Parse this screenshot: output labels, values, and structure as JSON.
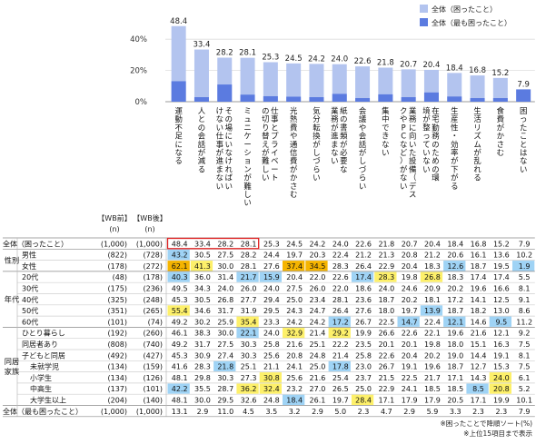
{
  "chart_data": {
    "type": "bar",
    "categories": [
      "運動不足になる",
      "人との会話が減る",
      "その場にいなければいけない仕事が進まない",
      "ミュニケーションが難しい",
      "仕事とプライベートの切り替えが難しい",
      "光熱費や通信費がかさむ",
      "気分転換がしづらい",
      "紙の書類が必要な業務が進まない",
      "会議や会話がしづらい",
      "集中できない",
      "業務に向いた設備（デスクやPCなど）がない",
      "在宅勤務のための環境が整っていない",
      "生産性・効率が下がる",
      "生活リズムが乱れる",
      "食費がかさむ",
      "困ったことはない"
    ],
    "series": [
      {
        "name": "全体（困ったこと）",
        "color": "#b3c4ef",
        "values": [
          48.4,
          33.4,
          28.2,
          28.1,
          25.3,
          24.5,
          24.2,
          24.0,
          22.6,
          21.8,
          20.7,
          20.4,
          18.4,
          16.8,
          15.2,
          null
        ]
      },
      {
        "name": "全体（最も困ったこと）",
        "color": "#5b7be0",
        "values": [
          13.1,
          2.9,
          11.0,
          4.5,
          3.5,
          3.2,
          2.9,
          5.0,
          2.3,
          4.7,
          2.9,
          5.9,
          3.3,
          2.3,
          2.3,
          7.9
        ]
      }
    ],
    "bar_labels": [
      "48.4",
      "33.4",
      "28.2",
      "28.1",
      "25.3",
      "24.5",
      "24.2",
      "24.0",
      "22.6",
      "21.8",
      "20.7",
      "20.4",
      "18.4",
      "16.8",
      "15.2",
      "7.9"
    ],
    "yticks": [
      "0%",
      "20%",
      "40%"
    ],
    "ylim": [
      0,
      50
    ],
    "legend_position": "top-right",
    "table": {
      "header_before": "【WB前】",
      "header_after": "【WB後】",
      "header_n": "(n)",
      "groups": [
        {
          "label": "",
          "rows": [
            0
          ]
        },
        {
          "label": "性別",
          "rows": [
            1,
            2
          ]
        },
        {
          "label": "年代",
          "rows": [
            3,
            4,
            5,
            6,
            7
          ]
        },
        {
          "label": "同居\n家族",
          "rows": [
            8,
            9,
            10,
            11,
            12,
            13,
            14
          ]
        },
        {
          "label": "",
          "rows": [
            15
          ]
        }
      ],
      "rows": [
        {
          "label": "全体（困ったこと）",
          "before": "(1,000)",
          "after": "(1,000)",
          "values": [
            "48.4",
            "33.4",
            "28.2",
            "28.1",
            "25.3",
            "24.5",
            "24.2",
            "24.0",
            "22.6",
            "21.8",
            "20.7",
            "20.4",
            "18.4",
            "16.8",
            "15.2",
            "7.9"
          ]
        },
        {
          "label": "男性",
          "before": "(822)",
          "after": "(728)",
          "values": [
            "43.2",
            "30.5",
            "27.5",
            "28.2",
            "24.4",
            "19.7",
            "20.3",
            "22.4",
            "21.2",
            "21.3",
            "20.8",
            "21.2",
            "20.6",
            "16.1",
            "13.6",
            "10.2"
          ]
        },
        {
          "label": "女性",
          "before": "(178)",
          "after": "(272)",
          "values": [
            "62.1",
            "41.3",
            "30.0",
            "28.1",
            "27.6",
            "37.4",
            "34.5",
            "28.3",
            "26.4",
            "22.9",
            "20.4",
            "18.3",
            "12.6",
            "18.7",
            "19.5",
            "1.9"
          ]
        },
        {
          "label": "20代",
          "before": "(48)",
          "after": "(178)",
          "values": [
            "40.3",
            "36.0",
            "31.4",
            "21.7",
            "15.9",
            "20.4",
            "22.0",
            "22.6",
            "17.4",
            "28.3",
            "19.8",
            "26.8",
            "18.3",
            "17.4",
            "17.4",
            "5.5"
          ]
        },
        {
          "label": "30代",
          "before": "(175)",
          "after": "(236)",
          "values": [
            "49.5",
            "34.3",
            "24.0",
            "26.0",
            "24.0",
            "27.5",
            "26.0",
            "22.0",
            "18.6",
            "24.0",
            "24.6",
            "20.9",
            "20.2",
            "19.6",
            "16.6",
            "8.1"
          ]
        },
        {
          "label": "40代",
          "before": "(325)",
          "after": "(248)",
          "values": [
            "45.3",
            "30.5",
            "26.8",
            "27.7",
            "29.4",
            "25.0",
            "23.4",
            "28.1",
            "23.6",
            "18.7",
            "20.2",
            "18.1",
            "17.2",
            "14.1",
            "12.5",
            "9.1"
          ]
        },
        {
          "label": "50代",
          "before": "(351)",
          "after": "(265)",
          "values": [
            "55.4",
            "34.6",
            "31.7",
            "31.9",
            "29.5",
            "24.3",
            "24.7",
            "26.4",
            "27.6",
            "18.0",
            "19.7",
            "13.9",
            "18.7",
            "18.2",
            "13.0",
            "8.6"
          ]
        },
        {
          "label": "60代",
          "before": "(101)",
          "after": "(74)",
          "values": [
            "49.2",
            "30.2",
            "25.9",
            "35.4",
            "23.3",
            "24.2",
            "24.2",
            "17.2",
            "26.7",
            "22.5",
            "14.7",
            "22.4",
            "12.1",
            "14.6",
            "9.5",
            "11.2"
          ]
        },
        {
          "label": "ひとり暮らし",
          "before": "(192)",
          "after": "(260)",
          "values": [
            "46.1",
            "38.3",
            "30.0",
            "22.1",
            "24.0",
            "32.9",
            "21.4",
            "29.2",
            "19.9",
            "26.6",
            "22.6",
            "22.1",
            "19.6",
            "21.6",
            "12.1",
            "9.2"
          ]
        },
        {
          "label": "同居者あり",
          "before": "(808)",
          "after": "(740)",
          "values": [
            "49.2",
            "31.7",
            "27.5",
            "30.3",
            "25.8",
            "21.6",
            "25.1",
            "22.2",
            "23.5",
            "20.1",
            "20.1",
            "19.8",
            "18.0",
            "15.1",
            "16.3",
            "7.5"
          ]
        },
        {
          "label": "子どもと同居",
          "before": "(492)",
          "after": "(427)",
          "values": [
            "45.3",
            "30.9",
            "27.4",
            "30.3",
            "25.6",
            "20.8",
            "24.8",
            "21.4",
            "25.8",
            "22.6",
            "20.4",
            "20.2",
            "19.0",
            "14.4",
            "19.1",
            "8.1"
          ]
        },
        {
          "label": "未就学児",
          "before": "(134)",
          "after": "(159)",
          "values": [
            "41.6",
            "28.3",
            "21.8",
            "25.1",
            "21.1",
            "24.1",
            "25.0",
            "17.8",
            "23.0",
            "26.7",
            "19.1",
            "19.6",
            "18.7",
            "12.7",
            "15.3",
            "7.5"
          ]
        },
        {
          "label": "小学生",
          "before": "(134)",
          "after": "(126)",
          "values": [
            "48.1",
            "29.8",
            "30.3",
            "27.3",
            "30.8",
            "25.6",
            "21.6",
            "25.4",
            "23.7",
            "21.5",
            "22.5",
            "21.7",
            "17.1",
            "14.3",
            "24.0",
            "6.1"
          ]
        },
        {
          "label": "中高生",
          "before": "(137)",
          "after": "(101)",
          "values": [
            "42.2",
            "35.5",
            "28.7",
            "36.2",
            "32.4",
            "23.2",
            "27.0",
            "26.5",
            "25.0",
            "22.9",
            "24.1",
            "18.5",
            "18.5",
            "8.5",
            "20.8",
            "5.2"
          ]
        },
        {
          "label": "大学生以上",
          "before": "(204)",
          "after": "(140)",
          "values": [
            "48.1",
            "30.0",
            "29.5",
            "32.6",
            "24.8",
            "18.4",
            "26.1",
            "19.7",
            "28.4",
            "17.1",
            "17.9",
            "17.9",
            "20.5",
            "17.1",
            "19.9",
            "10.1"
          ]
        },
        {
          "label": "全体（最も困ったこと）",
          "before": "(1,000)",
          "after": "(1,000)",
          "values": [
            "13.1",
            "2.9",
            "11.0",
            "4.5",
            "3.5",
            "3.2",
            "2.9",
            "5.0",
            "2.3",
            "4.7",
            "2.9",
            "5.9",
            "3.3",
            "2.3",
            "2.3",
            "7.9"
          ]
        }
      ],
      "highlight_colors": {
        "high_strong": "#f5b400",
        "high": "#fdf06a",
        "low": "#9fd3f5"
      },
      "highlights": [
        {
          "row": 0,
          "cols": [
            0,
            1,
            2,
            3
          ],
          "type": "outline",
          "color": "#e02020"
        },
        {
          "row": 1,
          "col": 0,
          "type": "low"
        },
        {
          "row": 2,
          "col": 0,
          "type": "high_strong"
        },
        {
          "row": 2,
          "col": 1,
          "type": "high"
        },
        {
          "row": 2,
          "col": 5,
          "type": "high_strong"
        },
        {
          "row": 2,
          "col": 6,
          "type": "high_strong"
        },
        {
          "row": 2,
          "col": 12,
          "type": "low"
        },
        {
          "row": 2,
          "col": 15,
          "type": "low"
        },
        {
          "row": 3,
          "col": 0,
          "type": "low"
        },
        {
          "row": 3,
          "col": 3,
          "type": "low"
        },
        {
          "row": 3,
          "col": 4,
          "type": "low"
        },
        {
          "row": 3,
          "col": 8,
          "type": "low"
        },
        {
          "row": 3,
          "col": 9,
          "type": "high"
        },
        {
          "row": 3,
          "col": 11,
          "type": "high"
        },
        {
          "row": 6,
          "col": 0,
          "type": "high"
        },
        {
          "row": 6,
          "col": 11,
          "type": "low"
        },
        {
          "row": 7,
          "col": 3,
          "type": "high"
        },
        {
          "row": 7,
          "col": 7,
          "type": "low"
        },
        {
          "row": 7,
          "col": 10,
          "type": "low"
        },
        {
          "row": 7,
          "col": 12,
          "type": "low"
        },
        {
          "row": 7,
          "col": 14,
          "type": "low"
        },
        {
          "row": 8,
          "col": 3,
          "type": "low"
        },
        {
          "row": 8,
          "col": 5,
          "type": "high"
        },
        {
          "row": 8,
          "col": 7,
          "type": "high"
        },
        {
          "row": 11,
          "col": 2,
          "type": "low"
        },
        {
          "row": 11,
          "col": 7,
          "type": "low"
        },
        {
          "row": 12,
          "col": 4,
          "type": "high"
        },
        {
          "row": 12,
          "col": 14,
          "type": "high"
        },
        {
          "row": 13,
          "col": 0,
          "type": "low"
        },
        {
          "row": 13,
          "col": 3,
          "type": "high"
        },
        {
          "row": 13,
          "col": 4,
          "type": "high"
        },
        {
          "row": 13,
          "col": 13,
          "type": "low"
        },
        {
          "row": 13,
          "col": 14,
          "type": "high"
        },
        {
          "row": 14,
          "col": 5,
          "type": "low"
        },
        {
          "row": 14,
          "col": 8,
          "type": "high"
        }
      ]
    },
    "notes": [
      "※困ったことで降順ソート(%)",
      "※上位15項目まで表示"
    ]
  }
}
